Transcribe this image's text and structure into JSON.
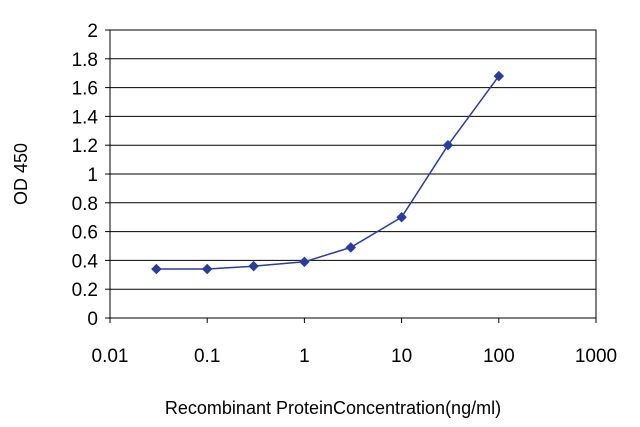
{
  "chart_data": {
    "type": "line",
    "title": "",
    "xlabel": "Recombinant ProteinConcentration(ng/ml)",
    "ylabel": "OD 450",
    "xscale": "log",
    "xlim": [
      0.01,
      1000
    ],
    "ylim": [
      0,
      2
    ],
    "grid": "horizontal",
    "x_ticks": [
      "0.01",
      "0.1",
      "1",
      "10",
      "100",
      "1000"
    ],
    "y_ticks": [
      "0",
      "0.2",
      "0.4",
      "0.6",
      "0.8",
      "1",
      "1.2",
      "1.4",
      "1.6",
      "1.8",
      "2"
    ],
    "series": [
      {
        "color": "#2a3d9c",
        "marker": "diamond",
        "x": [
          0.03,
          0.1,
          0.3,
          1,
          3,
          10,
          30,
          100
        ],
        "y": [
          0.34,
          0.34,
          0.36,
          0.39,
          0.49,
          0.7,
          1.2,
          1.68
        ]
      }
    ]
  }
}
